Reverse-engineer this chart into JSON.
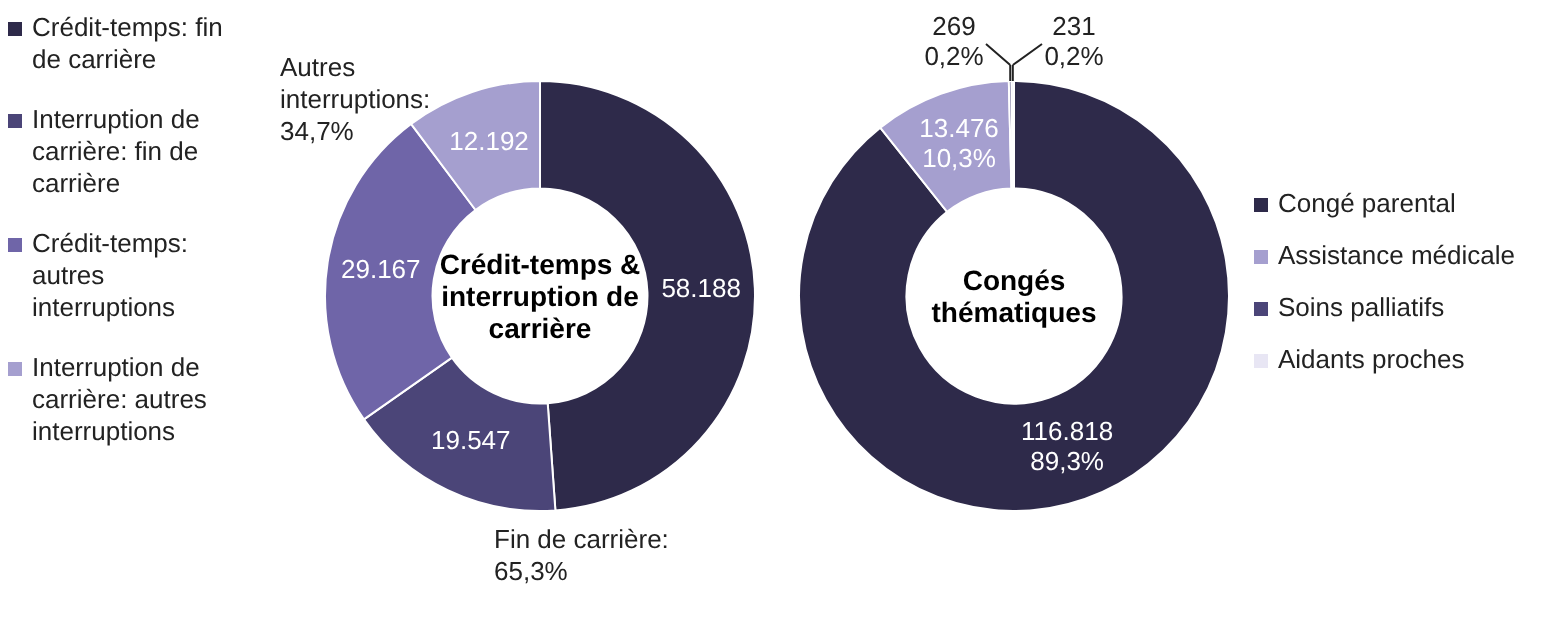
{
  "chart_data": [
    {
      "type": "donut",
      "title": "Crédit-temps & interruption de carrière",
      "categories": [
        "Crédit-temps: fin de carrière",
        "Interruption de carrière: fin de carrière",
        "Crédit-temps: autres interruptions",
        "Interruption de carrière: autres interruptions"
      ],
      "values": [
        58188,
        19547,
        29167,
        12192
      ],
      "value_labels": [
        "58.188",
        "19.547",
        "29.167",
        "12.192"
      ],
      "colors": [
        "#2e2a4a",
        "#4b4578",
        "#6f65a8",
        "#a59fcf"
      ],
      "annotations": [
        "Autres interruptions: 34,7%",
        "Fin de carrière: 65,3%"
      ],
      "legend": "left"
    },
    {
      "type": "donut",
      "title": "Congés thématiques",
      "categories": [
        "Congé parental",
        "Assistance médicale",
        "Soins palliatifs",
        "Aidants proches"
      ],
      "values": [
        116818,
        13476,
        269,
        231
      ],
      "value_labels": [
        "116.818\n89,3%",
        "13.476\n10,3%",
        "269\n0,2%",
        "231\n0,2%"
      ],
      "colors": [
        "#2e2a4a",
        "#a59fcf",
        "#4b4578",
        "#e8e6f4"
      ],
      "legend": "right"
    }
  ]
}
